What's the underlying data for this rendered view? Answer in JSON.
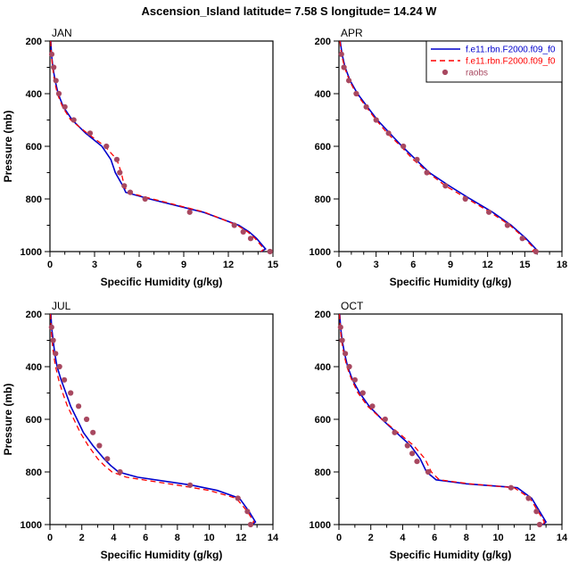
{
  "chart_data": {
    "type": "line",
    "title": "Ascension_Island  latitude= 7.58 S longitude= 14.24 W",
    "colors": {
      "model1": "#0000cc",
      "model2": "#ff0000",
      "raobs": "#a84860",
      "frame": "#000000"
    },
    "y": {
      "label": "Pressure (mb)",
      "range": [
        200,
        1000
      ],
      "ticks": [
        200,
        400,
        600,
        800,
        1000
      ],
      "minor_step": 100,
      "inverted": true
    },
    "legend": {
      "entries": [
        {
          "label": "f.e11.rbn.F2000.f09_f0",
          "type": "line",
          "dash": false,
          "color_key": "model1"
        },
        {
          "label": "f.e11.rbn.F2000.f09_f0",
          "type": "line",
          "dash": true,
          "color_key": "model2"
        },
        {
          "label": "raobs",
          "type": "dot",
          "color_key": "raobs"
        }
      ]
    },
    "panels": [
      {
        "label": "JAN",
        "xlabel": "Specific Humidity (g/kg)",
        "xlim": [
          0,
          15
        ],
        "xtick_major": 3,
        "xtick_minor": 1,
        "show_ylabel": true,
        "show_legend": false,
        "series": [
          {
            "name": "model1",
            "points": [
              [
                0.06,
                200
              ],
              [
                0.1,
                250
              ],
              [
                0.2,
                300
              ],
              [
                0.35,
                350
              ],
              [
                0.55,
                400
              ],
              [
                0.9,
                450
              ],
              [
                1.5,
                500
              ],
              [
                2.4,
                550
              ],
              [
                3.5,
                600
              ],
              [
                4.1,
                650
              ],
              [
                4.4,
                700
              ],
              [
                4.9,
                750
              ],
              [
                5.1,
                775
              ],
              [
                6.7,
                800
              ],
              [
                10.3,
                850
              ],
              [
                12.7,
                900
              ],
              [
                13.4,
                925
              ],
              [
                13.9,
                950
              ],
              [
                14.5,
                990
              ],
              [
                14.2,
                1000
              ]
            ]
          },
          {
            "name": "model2",
            "points": [
              [
                0.05,
                200
              ],
              [
                0.09,
                250
              ],
              [
                0.18,
                300
              ],
              [
                0.3,
                350
              ],
              [
                0.5,
                400
              ],
              [
                0.85,
                450
              ],
              [
                1.4,
                500
              ],
              [
                2.5,
                550
              ],
              [
                3.7,
                600
              ],
              [
                4.5,
                650
              ],
              [
                4.8,
                700
              ],
              [
                5.0,
                750
              ],
              [
                5.2,
                775
              ],
              [
                6.9,
                800
              ],
              [
                10.4,
                850
              ],
              [
                12.6,
                900
              ],
              [
                13.3,
                925
              ],
              [
                13.8,
                950
              ],
              [
                14.4,
                990
              ],
              [
                14.2,
                1000
              ]
            ]
          }
        ],
        "raobs": [
          [
            0.12,
            250
          ],
          [
            0.25,
            300
          ],
          [
            0.4,
            350
          ],
          [
            0.6,
            400
          ],
          [
            1.0,
            450
          ],
          [
            1.6,
            500
          ],
          [
            2.7,
            550
          ],
          [
            3.8,
            600
          ],
          [
            4.5,
            650
          ],
          [
            4.7,
            700
          ],
          [
            5.0,
            750
          ],
          [
            5.4,
            775
          ],
          [
            6.4,
            800
          ],
          [
            9.4,
            850
          ],
          [
            12.4,
            900
          ],
          [
            13.0,
            925
          ],
          [
            13.5,
            950
          ],
          [
            14.8,
            1000
          ]
        ]
      },
      {
        "label": "APR",
        "xlabel": "Specific Humidity (g/kg)",
        "xlim": [
          0,
          18
        ],
        "xtick_major": 3,
        "xtick_minor": 1,
        "show_ylabel": false,
        "show_legend": true,
        "series": [
          {
            "name": "model1",
            "points": [
              [
                0.1,
                200
              ],
              [
                0.25,
                250
              ],
              [
                0.5,
                300
              ],
              [
                0.9,
                350
              ],
              [
                1.5,
                400
              ],
              [
                2.3,
                450
              ],
              [
                3.1,
                500
              ],
              [
                4.1,
                550
              ],
              [
                5.1,
                600
              ],
              [
                6.2,
                650
              ],
              [
                7.3,
                700
              ],
              [
                8.9,
                750
              ],
              [
                10.6,
                800
              ],
              [
                12.4,
                850
              ],
              [
                13.9,
                900
              ],
              [
                15.1,
                950
              ],
              [
                15.9,
                990
              ],
              [
                15.6,
                1000
              ]
            ]
          },
          {
            "name": "model2",
            "points": [
              [
                0.08,
                200
              ],
              [
                0.2,
                250
              ],
              [
                0.45,
                300
              ],
              [
                0.85,
                350
              ],
              [
                1.4,
                400
              ],
              [
                2.2,
                450
              ],
              [
                3.0,
                500
              ],
              [
                3.9,
                550
              ],
              [
                5.0,
                600
              ],
              [
                6.0,
                650
              ],
              [
                7.2,
                700
              ],
              [
                8.6,
                750
              ],
              [
                10.4,
                800
              ],
              [
                12.2,
                850
              ],
              [
                13.8,
                900
              ],
              [
                15.0,
                950
              ],
              [
                15.8,
                990
              ],
              [
                15.6,
                1000
              ]
            ]
          }
        ],
        "raobs": [
          [
            0.2,
            250
          ],
          [
            0.4,
            300
          ],
          [
            0.8,
            350
          ],
          [
            1.4,
            400
          ],
          [
            2.2,
            450
          ],
          [
            3.0,
            500
          ],
          [
            4.0,
            550
          ],
          [
            5.2,
            600
          ],
          [
            6.3,
            650
          ],
          [
            7.1,
            700
          ],
          [
            8.6,
            750
          ],
          [
            10.2,
            800
          ],
          [
            12.1,
            850
          ],
          [
            13.6,
            900
          ],
          [
            14.8,
            950
          ],
          [
            15.9,
            1000
          ]
        ]
      },
      {
        "label": "JUL",
        "xlabel": "Specific Humidity (g/kg)",
        "xlim": [
          0,
          14
        ],
        "xtick_major": 2,
        "xtick_minor": 1,
        "show_ylabel": true,
        "show_legend": false,
        "series": [
          {
            "name": "model1",
            "points": [
              [
                0.06,
                200
              ],
              [
                0.1,
                250
              ],
              [
                0.2,
                300
              ],
              [
                0.3,
                350
              ],
              [
                0.45,
                400
              ],
              [
                0.7,
                450
              ],
              [
                1.0,
                500
              ],
              [
                1.3,
                550
              ],
              [
                1.7,
                600
              ],
              [
                2.1,
                650
              ],
              [
                2.7,
                700
              ],
              [
                3.4,
                750
              ],
              [
                3.8,
                775
              ],
              [
                4.3,
                800
              ],
              [
                5.5,
                820
              ],
              [
                8.9,
                850
              ],
              [
                10.5,
                870
              ],
              [
                11.9,
                900
              ],
              [
                12.5,
                950
              ],
              [
                12.9,
                990
              ],
              [
                12.7,
                1000
              ]
            ]
          },
          {
            "name": "model2",
            "points": [
              [
                0.04,
                200
              ],
              [
                0.07,
                250
              ],
              [
                0.13,
                300
              ],
              [
                0.22,
                350
              ],
              [
                0.35,
                400
              ],
              [
                0.55,
                450
              ],
              [
                0.8,
                500
              ],
              [
                1.1,
                550
              ],
              [
                1.5,
                600
              ],
              [
                1.9,
                650
              ],
              [
                2.4,
                700
              ],
              [
                3.0,
                750
              ],
              [
                3.4,
                775
              ],
              [
                3.9,
                800
              ],
              [
                4.8,
                820
              ],
              [
                8.0,
                850
              ],
              [
                10.0,
                870
              ],
              [
                11.7,
                900
              ],
              [
                12.4,
                950
              ],
              [
                12.8,
                990
              ],
              [
                12.6,
                1000
              ]
            ]
          }
        ],
        "raobs": [
          [
            0.1,
            250
          ],
          [
            0.2,
            300
          ],
          [
            0.35,
            350
          ],
          [
            0.6,
            400
          ],
          [
            0.9,
            450
          ],
          [
            1.3,
            500
          ],
          [
            1.8,
            550
          ],
          [
            2.3,
            600
          ],
          [
            2.7,
            650
          ],
          [
            3.1,
            700
          ],
          [
            3.6,
            750
          ],
          [
            4.4,
            800
          ],
          [
            8.8,
            850
          ],
          [
            11.8,
            900
          ],
          [
            12.4,
            950
          ],
          [
            12.6,
            1000
          ]
        ]
      },
      {
        "label": "OCT",
        "xlabel": "Specific Humidity (g/kg)",
        "xlim": [
          0,
          14
        ],
        "xtick_major": 2,
        "xtick_minor": 1,
        "show_ylabel": false,
        "show_legend": false,
        "series": [
          {
            "name": "model1",
            "points": [
              [
                0.05,
                200
              ],
              [
                0.1,
                250
              ],
              [
                0.2,
                300
              ],
              [
                0.35,
                350
              ],
              [
                0.55,
                400
              ],
              [
                0.85,
                450
              ],
              [
                1.3,
                500
              ],
              [
                1.9,
                550
              ],
              [
                2.7,
                600
              ],
              [
                3.6,
                650
              ],
              [
                4.5,
                700
              ],
              [
                5.1,
                750
              ],
              [
                5.5,
                800
              ],
              [
                6.1,
                830
              ],
              [
                8.0,
                845
              ],
              [
                11.2,
                860
              ],
              [
                12.1,
                900
              ],
              [
                12.6,
                950
              ],
              [
                13.0,
                990
              ],
              [
                12.8,
                1000
              ]
            ]
          },
          {
            "name": "model2",
            "points": [
              [
                0.04,
                200
              ],
              [
                0.08,
                250
              ],
              [
                0.16,
                300
              ],
              [
                0.3,
                350
              ],
              [
                0.5,
                400
              ],
              [
                0.8,
                450
              ],
              [
                1.2,
                500
              ],
              [
                1.8,
                550
              ],
              [
                2.7,
                600
              ],
              [
                3.7,
                650
              ],
              [
                4.7,
                700
              ],
              [
                5.4,
                750
              ],
              [
                5.8,
                800
              ],
              [
                6.3,
                830
              ],
              [
                8.2,
                845
              ],
              [
                11.0,
                860
              ],
              [
                12.0,
                900
              ],
              [
                12.5,
                950
              ],
              [
                12.9,
                990
              ],
              [
                12.8,
                1000
              ]
            ]
          }
        ],
        "raobs": [
          [
            0.1,
            250
          ],
          [
            0.2,
            300
          ],
          [
            0.4,
            350
          ],
          [
            0.65,
            400
          ],
          [
            1.0,
            450
          ],
          [
            1.5,
            500
          ],
          [
            2.1,
            550
          ],
          [
            2.9,
            600
          ],
          [
            3.5,
            650
          ],
          [
            4.3,
            700
          ],
          [
            4.6,
            730
          ],
          [
            4.9,
            760
          ],
          [
            5.6,
            800
          ],
          [
            10.8,
            860
          ],
          [
            11.9,
            900
          ],
          [
            12.4,
            950
          ],
          [
            12.6,
            1000
          ]
        ]
      }
    ]
  }
}
